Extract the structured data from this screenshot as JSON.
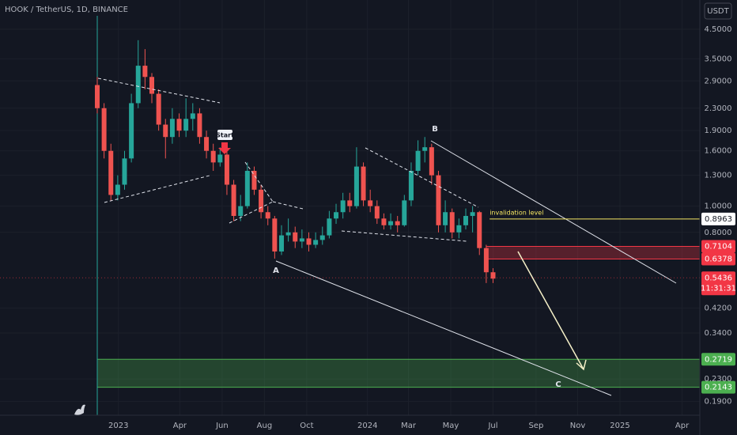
{
  "chart_data": {
    "type": "candlestick",
    "title": "HOOK / TetherUS, 1D, BINANCE",
    "currency": "USDT",
    "log_scale": true,
    "up_color": "#26a69a",
    "down_color": "#ef5350",
    "xlim": [
      -142.5,
      883
    ],
    "xticks": [
      {
        "value": 31,
        "label": "2023"
      },
      {
        "value": 121,
        "label": "Apr"
      },
      {
        "value": 183,
        "label": "Jun"
      },
      {
        "value": 245,
        "label": "Aug"
      },
      {
        "value": 307,
        "label": "Oct"
      },
      {
        "value": 396,
        "label": "2024"
      },
      {
        "value": 456,
        "label": "Mar"
      },
      {
        "value": 518,
        "label": "May"
      },
      {
        "value": 580,
        "label": "Jul"
      },
      {
        "value": 643,
        "label": "Sep"
      },
      {
        "value": 704,
        "label": "Nov"
      },
      {
        "value": 766,
        "label": "2025"
      },
      {
        "value": 857,
        "label": "Apr"
      }
    ],
    "ylim": [
      0.169,
      5.77
    ],
    "yticks": [
      {
        "value": 4.5,
        "label": "4.5000"
      },
      {
        "value": 3.5,
        "label": "3.5000"
      },
      {
        "value": 2.9,
        "label": "2.9000"
      },
      {
        "value": 2.3,
        "label": "2.3000"
      },
      {
        "value": 1.9,
        "label": "1.9000"
      },
      {
        "value": 1.6,
        "label": "1.6000"
      },
      {
        "value": 1.3,
        "label": "1.3000"
      },
      {
        "value": 1,
        "label": "1.0000"
      },
      {
        "value": 0.8,
        "label": "0.8000"
      },
      {
        "value": 0.42,
        "label": "0.4200"
      },
      {
        "value": 0.34,
        "label": "0.3400"
      },
      {
        "value": 0.23,
        "label": "0.2300"
      },
      {
        "value": 0.19,
        "label": "0.1900"
      }
    ],
    "candles": {
      "x": [
        0,
        10,
        20,
        30,
        40,
        50,
        60,
        70,
        80,
        90,
        100,
        110,
        120,
        130,
        140,
        150,
        160,
        170,
        180,
        190,
        200,
        210,
        220,
        230,
        240,
        250,
        260,
        270,
        280,
        290,
        300,
        310,
        320,
        330,
        340,
        350,
        360,
        370,
        380,
        390,
        400,
        410,
        420,
        430,
        440,
        450,
        460,
        470,
        480,
        490,
        500,
        510,
        520,
        530,
        540,
        550,
        560,
        570,
        580
      ],
      "open": [
        2.8,
        2.3,
        1.6,
        1.1,
        1.2,
        1.5,
        2.4,
        3.3,
        3.0,
        2.6,
        2.0,
        1.8,
        2.1,
        1.9,
        2.1,
        2.2,
        1.8,
        1.6,
        1.45,
        1.55,
        1.2,
        0.92,
        1.0,
        1.35,
        1.15,
        0.95,
        0.9,
        0.68,
        0.78,
        0.8,
        0.74,
        0.76,
        0.72,
        0.75,
        0.78,
        0.9,
        0.95,
        1.05,
        1.0,
        1.4,
        1.05,
        1.0,
        0.9,
        0.85,
        0.88,
        0.85,
        1.05,
        1.35,
        1.6,
        1.65,
        1.3,
        0.85,
        0.95,
        0.8,
        0.85,
        0.92,
        0.95,
        0.7,
        0.57
      ],
      "high": [
        3.0,
        2.4,
        1.7,
        1.3,
        1.6,
        2.6,
        4.1,
        3.8,
        3.1,
        2.7,
        2.1,
        2.3,
        2.2,
        2.5,
        2.4,
        2.3,
        1.9,
        1.7,
        1.65,
        1.6,
        1.25,
        1.1,
        1.45,
        1.4,
        1.2,
        1.0,
        0.92,
        0.85,
        0.9,
        0.84,
        0.82,
        0.8,
        0.8,
        0.84,
        0.96,
        1.02,
        1.12,
        1.12,
        1.65,
        1.45,
        1.15,
        1.05,
        0.94,
        0.94,
        0.92,
        1.1,
        1.45,
        1.75,
        1.8,
        1.7,
        1.35,
        1.05,
        0.98,
        0.9,
        0.98,
        1.0,
        0.96,
        0.72,
        0.59
      ],
      "low": [
        2.2,
        1.5,
        1.05,
        1.05,
        1.15,
        1.45,
        2.3,
        2.7,
        2.4,
        1.9,
        1.5,
        1.7,
        1.8,
        1.8,
        1.9,
        1.7,
        1.5,
        1.35,
        1.4,
        1.1,
        0.88,
        0.88,
        0.98,
        1.1,
        0.9,
        0.85,
        0.64,
        0.66,
        0.74,
        0.7,
        0.7,
        0.68,
        0.7,
        0.72,
        0.76,
        0.86,
        0.9,
        0.95,
        0.98,
        1.0,
        0.95,
        0.86,
        0.82,
        0.82,
        0.8,
        0.84,
        1.0,
        1.3,
        1.45,
        1.2,
        0.8,
        0.8,
        0.76,
        0.76,
        0.82,
        0.8,
        0.66,
        0.52,
        0.52
      ],
      "close": [
        2.3,
        1.6,
        1.1,
        1.2,
        1.5,
        2.4,
        3.3,
        3.0,
        2.6,
        2.0,
        1.8,
        2.1,
        1.9,
        2.1,
        2.2,
        1.8,
        1.6,
        1.45,
        1.55,
        1.2,
        0.92,
        1.0,
        1.35,
        1.15,
        0.95,
        0.9,
        0.68,
        0.78,
        0.8,
        0.74,
        0.76,
        0.72,
        0.75,
        0.78,
        0.9,
        0.95,
        1.05,
        1.0,
        1.4,
        1.05,
        1.0,
        0.9,
        0.85,
        0.88,
        0.85,
        1.05,
        1.35,
        1.6,
        1.65,
        1.3,
        0.85,
        0.95,
        0.8,
        0.85,
        0.92,
        0.95,
        0.7,
        0.57,
        0.54
      ]
    },
    "zones": [
      {
        "top": {
          "value": 0.7104,
          "label": "0.7104"
        },
        "bottom": {
          "value": 0.6378,
          "label": "0.6378"
        },
        "start": 570,
        "color": "#f23645"
      },
      {
        "top": {
          "value": 0.2719,
          "label": "0.2719"
        },
        "bottom": {
          "value": 0.2143,
          "label": "0.2143"
        },
        "start": 0,
        "color": "#4caf50"
      }
    ],
    "invalidation": {
      "value": 0.8963,
      "label": "0.8963",
      "text": "invalidation level",
      "start": 575,
      "color": "#f5e663"
    },
    "last_price": {
      "value": 0.5436,
      "label": "0.5436",
      "countdown": "11:31:31",
      "color": "#f23645"
    },
    "annotations": {
      "start": "Start",
      "a": "A",
      "b": "B",
      "c": "C"
    }
  }
}
